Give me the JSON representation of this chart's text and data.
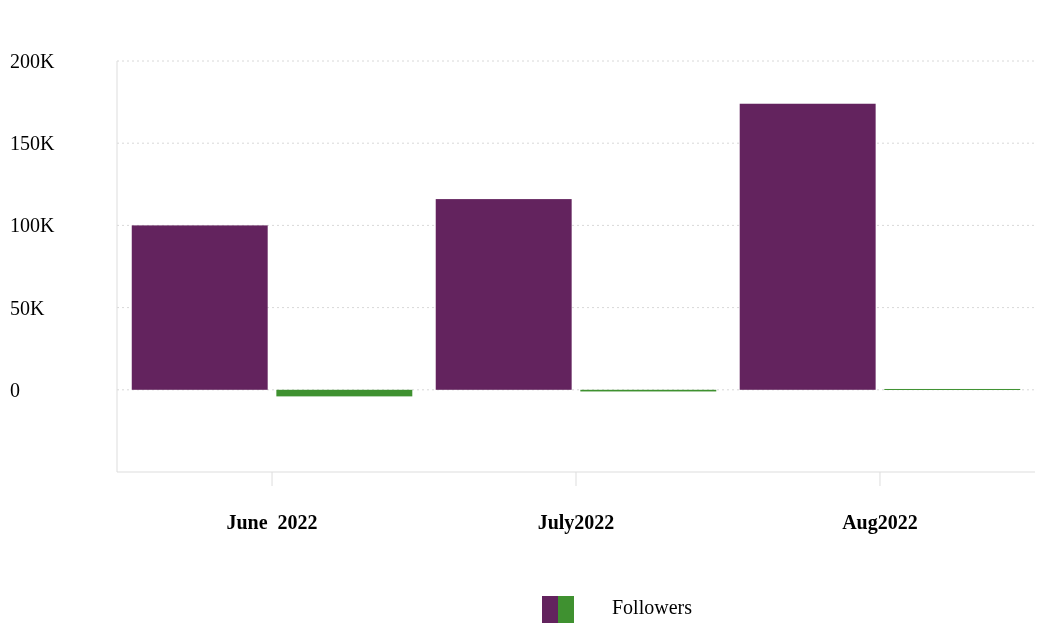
{
  "chart_data": {
    "type": "bar",
    "categories": [
      "June  2022",
      "July2022",
      "Aug2022"
    ],
    "series": [
      {
        "name": "Followers",
        "color": "#63235e",
        "values": [
          100000,
          116000,
          174000
        ]
      },
      {
        "color": "#3f9130",
        "values": [
          -4000,
          -1000,
          500
        ]
      }
    ],
    "ylim": [
      -50000,
      200000
    ],
    "yticks": [
      {
        "value": 0,
        "label": "0"
      },
      {
        "value": 50000,
        "label": "50K"
      },
      {
        "value": 100000,
        "label": "100K"
      },
      {
        "value": 150000,
        "label": "150K"
      },
      {
        "value": 200000,
        "label": "200K"
      }
    ],
    "grid": "y",
    "legend": "bottom"
  }
}
